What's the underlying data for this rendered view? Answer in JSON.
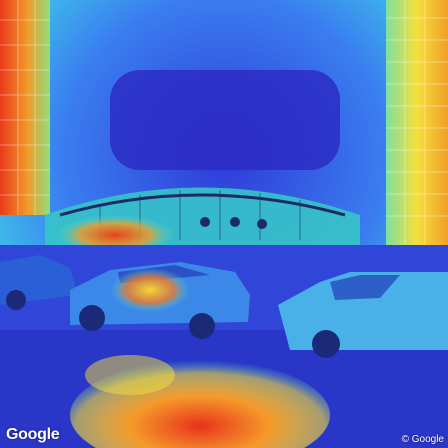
{
  "image": {
    "description_colors": {
      "sky_deep": "#2a2fc8",
      "sky_light": "#3fa0ff",
      "hot": "#e8321c",
      "warm": "#f5e03a",
      "cyan": "#3fe0e0"
    }
  },
  "overlay": {
    "logo_text": "Google",
    "copyright_text": "© Google"
  }
}
